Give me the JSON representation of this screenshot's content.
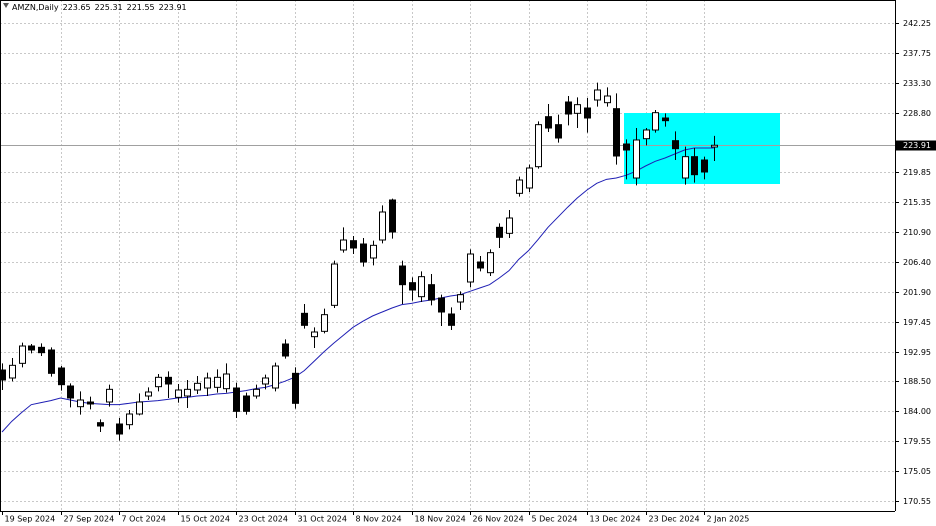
{
  "chart_data": {
    "type": "candlestick",
    "symbol": "AMZN,Daily",
    "categories": [
      "19 Sep 2024",
      null,
      null,
      null,
      null,
      null,
      "27 Sep 2024",
      null,
      null,
      null,
      null,
      null,
      "7 Oct 2024",
      null,
      null,
      null,
      null,
      null,
      "15 Oct 2024",
      null,
      null,
      null,
      null,
      null,
      "23 Oct 2024",
      null,
      null,
      null,
      null,
      null,
      "31 Oct 2024",
      null,
      null,
      null,
      null,
      null,
      "8 Nov 2024",
      null,
      null,
      null,
      null,
      null,
      "18 Nov 2024",
      null,
      null,
      null,
      null,
      null,
      "26 Nov 2024",
      null,
      null,
      null,
      null,
      null,
      "5 Dec 2024",
      null,
      null,
      null,
      null,
      null,
      "13 Dec 2024",
      null,
      null,
      null,
      null,
      null,
      "23 Dec 2024",
      null,
      null,
      null,
      null,
      null,
      "2 Jan 2025",
      null
    ],
    "open": [
      190.2,
      189.0,
      191.2,
      193.8,
      193.6,
      193.2,
      190.5,
      187.8,
      184.7,
      185.4,
      182.3,
      185.4,
      182.1,
      182.0,
      183.6,
      186.3,
      187.7,
      189.1,
      186.1,
      186.3,
      187.2,
      187.5,
      187.6,
      187.4,
      187.5,
      186.3,
      186.3,
      188.1,
      187.5,
      194.1,
      189.7,
      198.7,
      195.2,
      196.0,
      199.9,
      208.2,
      209.6,
      209.1,
      207.0,
      209.7,
      215.7,
      205.8,
      203.3,
      201.2,
      203.0,
      201.0,
      198.6,
      200.4,
      203.4,
      206.4,
      204.8,
      211.6,
      210.7,
      216.7,
      217.5,
      220.7,
      228.2,
      227.0,
      230.4,
      228.7,
      229.5,
      230.7,
      230.3,
      229.4,
      224.1,
      219.0,
      224.9,
      226.2,
      228.0,
      224.6,
      219.0,
      222.2,
      221.7,
      223.65
    ],
    "high": [
      191.2,
      192.0,
      194.3,
      194.1,
      194.2,
      193.6,
      190.8,
      188.2,
      187.0,
      186.2,
      182.8,
      188.0,
      183.0,
      184.2,
      186.7,
      187.6,
      189.6,
      190.0,
      188.1,
      188.7,
      189.3,
      189.8,
      190.3,
      191.2,
      188.3,
      186.8,
      188.0,
      189.5,
      191.3,
      194.8,
      190.6,
      200.1,
      196.6,
      199.4,
      206.6,
      211.6,
      210.3,
      210.0,
      209.6,
      214.9,
      215.9,
      206.6,
      204.1,
      205.0,
      204.6,
      201.5,
      199.6,
      202.0,
      208.3,
      207.3,
      208.3,
      212.2,
      214.2,
      219.2,
      221.0,
      227.5,
      230.1,
      228.5,
      231.3,
      231.1,
      231.0,
      233.3,
      232.6,
      231.7,
      224.8,
      226.5,
      226.5,
      229.2,
      228.7,
      226.0,
      223.7,
      223.5,
      222.2,
      225.31
    ],
    "low": [
      187.2,
      188.5,
      190.6,
      192.7,
      192.3,
      189.2,
      187.1,
      184.6,
      183.5,
      184.3,
      180.9,
      184.7,
      179.6,
      181.3,
      183.4,
      185.7,
      187.0,
      186.0,
      185.3,
      184.5,
      186.6,
      186.3,
      186.8,
      186.8,
      183.0,
      183.5,
      185.9,
      187.3,
      187.0,
      191.9,
      184.4,
      196.4,
      193.5,
      195.7,
      199.5,
      207.8,
      207.6,
      205.7,
      205.9,
      209.2,
      209.9,
      200.1,
      200.6,
      200.4,
      199.9,
      196.8,
      196.2,
      199.2,
      202.6,
      205.0,
      204.3,
      208.5,
      210.0,
      216.2,
      216.9,
      220.4,
      225.9,
      224.3,
      226.9,
      226.5,
      225.8,
      229.7,
      229.7,
      221.0,
      218.8,
      217.9,
      223.9,
      225.8,
      226.7,
      221.7,
      218.0,
      218.3,
      218.8,
      221.55
    ],
    "close": [
      188.7,
      190.9,
      193.8,
      193.2,
      192.8,
      189.7,
      188.0,
      186.0,
      185.7,
      185.1,
      181.8,
      187.3,
      180.6,
      183.6,
      185.4,
      186.9,
      189.1,
      188.1,
      187.2,
      187.3,
      188.2,
      189.0,
      189.1,
      189.6,
      184.0,
      184.0,
      187.3,
      189.0,
      190.8,
      192.3,
      185.2,
      196.9,
      195.9,
      198.5,
      206.1,
      209.7,
      208.5,
      206.4,
      208.9,
      213.9,
      210.9,
      203.0,
      202.2,
      204.2,
      200.7,
      198.9,
      196.9,
      201.5,
      207.6,
      205.5,
      207.8,
      210.1,
      213.0,
      218.7,
      220.5,
      227.0,
      226.5,
      225.0,
      228.6,
      230.0,
      228.0,
      232.2,
      231.3,
      222.3,
      223.2,
      224.7,
      226.2,
      228.8,
      227.6,
      223.4,
      222.2,
      219.5,
      219.9,
      223.91
    ],
    "ma": {
      "color": "#1f1fb4",
      "values": [
        180.9,
        182.5,
        183.8,
        185.0,
        185.3,
        185.6,
        186.0,
        185.7,
        185.4,
        185.2,
        185.1,
        185.0,
        185.0,
        185.2,
        185.4,
        185.5,
        185.6,
        185.8,
        186.0,
        186.1,
        186.3,
        186.4,
        186.6,
        186.7,
        186.9,
        187.1,
        187.4,
        187.6,
        188.0,
        188.5,
        189.1,
        190.1,
        191.5,
        192.9,
        194.2,
        195.4,
        196.6,
        197.5,
        198.3,
        198.9,
        199.5,
        200.0,
        200.2,
        200.5,
        200.7,
        201.0,
        201.3,
        201.5,
        202.0,
        202.5,
        203.0,
        204.0,
        205.1,
        206.8,
        208.1,
        209.8,
        211.6,
        213.1,
        214.6,
        216.0,
        217.2,
        218.2,
        218.8,
        219.0,
        219.4,
        220.0,
        220.8,
        221.5,
        222.0,
        222.6,
        223.2,
        223.5,
        223.5,
        223.5
      ]
    },
    "ylim": [
      169.2,
      245.7
    ],
    "yticks": [
      242.25,
      237.75,
      {
        "value": 233.3,
        "label": "233.30"
      },
      {
        "value": 228.8,
        "label": "228.80"
      },
      219.85,
      215.35,
      {
        "value": 210.9,
        "label": "210.90"
      },
      {
        "value": 206.4,
        "label": "206.40"
      },
      {
        "value": 201.9,
        "label": "201.90"
      },
      197.45,
      192.95,
      {
        "value": 188.5,
        "label": "188.50"
      },
      {
        "value": 184.0,
        "label": "184.00"
      },
      179.55,
      175.05,
      170.55
    ],
    "grid": true,
    "up_color": "#ffffff",
    "down_color": "#000000"
  }
}
